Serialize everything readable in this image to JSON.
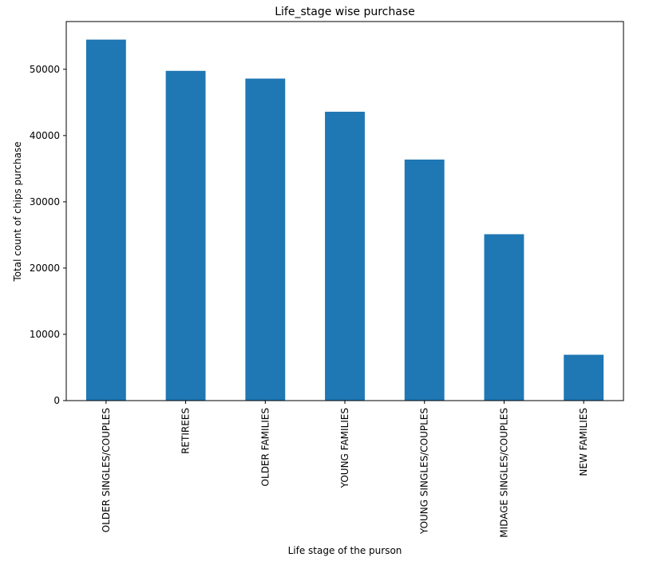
{
  "chart_data": {
    "type": "bar",
    "title": "Life_stage wise purchase",
    "xlabel": "Life stage of the purson",
    "ylabel": "Total count of chips purchase",
    "categories": [
      "OLDER SINGLES/COUPLES",
      "RETIREES",
      "OLDER FAMILIES",
      "YOUNG FAMILIES",
      "YOUNG SINGLES/COUPLES",
      "MIDAGE SINGLES/COUPLES",
      "NEW FAMILIES"
    ],
    "values": [
      54479,
      49763,
      48596,
      43592,
      36377,
      25110,
      6919
    ],
    "ylim": [
      0,
      57204
    ],
    "yticks": [
      0,
      10000,
      20000,
      30000,
      40000,
      50000
    ],
    "grid": false,
    "bar_color": "#1f77b4"
  }
}
